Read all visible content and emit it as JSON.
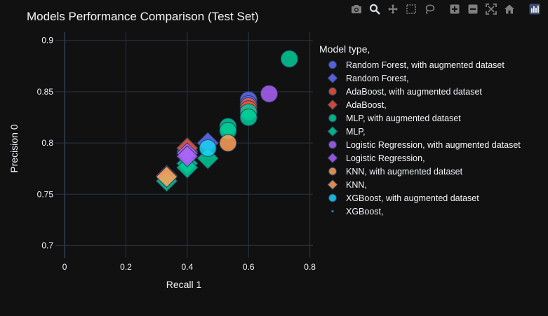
{
  "colors": {
    "background": "#111111",
    "grid": "#283442",
    "text": "#f2f5fa",
    "modebar_icon": "#7f7f7f",
    "modebar_active": "#d6dbe3"
  },
  "toolbar": [
    {
      "name": "camera-icon",
      "active": false
    },
    {
      "name": "zoom-icon",
      "active": true
    },
    {
      "name": "pan-icon",
      "active": false
    },
    {
      "name": "box-select-icon",
      "active": false
    },
    {
      "name": "lasso-select-icon",
      "active": false
    },
    {
      "name": "zoom-in-icon",
      "active": false
    },
    {
      "name": "zoom-out-icon",
      "active": false
    },
    {
      "name": "autoscale-icon",
      "active": false
    },
    {
      "name": "reset-axes-icon",
      "active": false
    },
    {
      "name": "plotly-logo-icon",
      "active": false
    }
  ],
  "chart_data": {
    "type": "scatter",
    "title": "Models Performance Comparison (Test Set)",
    "xlabel": "Recall 1",
    "ylabel": "Precision 0",
    "xlim": [
      -0.03,
      0.81
    ],
    "ylim": [
      0.688,
      0.908
    ],
    "xticks": [
      0,
      0.2,
      0.4,
      0.6,
      0.8
    ],
    "xtick_labels": [
      "0",
      "0.2",
      "0.4",
      "0.6",
      "0.8"
    ],
    "yticks": [
      0.7,
      0.75,
      0.8,
      0.85,
      0.9
    ],
    "ytick_labels": [
      "0.7",
      "0.75",
      "0.8",
      "0.85",
      "0.9"
    ],
    "grid": true,
    "legend_title": "Model type,",
    "legend_position": "right",
    "series": [
      {
        "name": "Random Forest, with augmented dataset",
        "symbol": "circle",
        "color": "#636efa",
        "points": [
          [
            0.6,
            0.842
          ],
          [
            0.6,
            0.838
          ]
        ]
      },
      {
        "name": "Random Forest,",
        "symbol": "diamond",
        "color": "#636efa",
        "points": [
          [
            0.467,
            0.8
          ],
          [
            0.4,
            0.792
          ]
        ]
      },
      {
        "name": "AdaBoost, with augmented dataset",
        "symbol": "circle",
        "color": "#EF553B",
        "points": [
          [
            0.6,
            0.836
          ],
          [
            0.6,
            0.833
          ]
        ]
      },
      {
        "name": "AdaBoost,",
        "symbol": "diamond",
        "color": "#EF553B",
        "points": [
          [
            0.4,
            0.795
          ],
          [
            0.333,
            0.768
          ]
        ]
      },
      {
        "name": "MLP, with augmented dataset",
        "symbol": "circle",
        "color": "#00cc96",
        "points": [
          [
            0.733,
            0.882
          ],
          [
            0.533,
            0.816
          ],
          [
            0.533,
            0.812
          ],
          [
            0.6,
            0.83
          ],
          [
            0.6,
            0.825
          ]
        ]
      },
      {
        "name": "MLP,",
        "symbol": "diamond",
        "color": "#00cc96",
        "points": [
          [
            0.467,
            0.785
          ],
          [
            0.4,
            0.78
          ],
          [
            0.4,
            0.776
          ],
          [
            0.333,
            0.763
          ]
        ]
      },
      {
        "name": "Logistic Regression, with augmented dataset",
        "symbol": "circle",
        "color": "#ab63fa",
        "points": [
          [
            0.667,
            0.848
          ]
        ]
      },
      {
        "name": "Logistic Regression,",
        "symbol": "diamond",
        "color": "#ab63fa",
        "points": [
          [
            0.4,
            0.79
          ],
          [
            0.4,
            0.787
          ]
        ]
      },
      {
        "name": "KNN, with augmented dataset",
        "symbol": "circle",
        "color": "#FFA15A",
        "points": [
          [
            0.533,
            0.8
          ]
        ]
      },
      {
        "name": "KNN,",
        "symbol": "diamond",
        "color": "#FFA15A",
        "points": [
          [
            0.333,
            0.767
          ]
        ]
      },
      {
        "name": "XGBoost, with augmented dataset",
        "symbol": "circle",
        "color": "#19d3f3",
        "points": [
          [
            0.467,
            0.795
          ]
        ]
      },
      {
        "name": "XGBoost,",
        "symbol": "dot",
        "color": "#19d3f3",
        "points": []
      }
    ]
  }
}
